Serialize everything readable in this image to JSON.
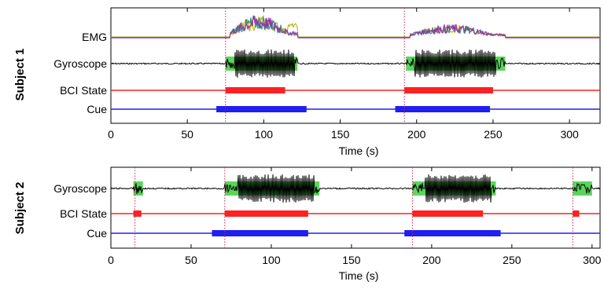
{
  "chart_data": [
    {
      "type": "line",
      "subject_label": "Subject 1",
      "xlabel": "Time (s)",
      "xlim": [
        0,
        320
      ],
      "xticks": [
        0,
        50,
        100,
        150,
        200,
        250,
        300
      ],
      "row_labels": [
        "EMG",
        "Gyroscope",
        "BCI State",
        "Cue"
      ],
      "colors": {
        "emg": [
          "#b5b51a",
          "#2a9090",
          "#9d2fa6"
        ],
        "gyro_trace": "#000000",
        "gyro_highlight": "#5bd65b",
        "bci": "#ff2020",
        "cue": "#1f1ff0",
        "marker": "#d02050"
      },
      "markers": [
        75,
        192
      ],
      "emg_bursts": [
        [
          78,
          122
        ],
        [
          196,
          258
        ]
      ],
      "gyro_highlight": [
        [
          75,
          122
        ],
        [
          193,
          258
        ]
      ],
      "gyro_active": [
        [
          81,
          120
        ],
        [
          199,
          252
        ]
      ],
      "bci_active": [
        [
          75,
          114
        ],
        [
          192,
          250
        ]
      ],
      "cue_active": [
        [
          69,
          128
        ],
        [
          186,
          248
        ]
      ]
    },
    {
      "type": "line",
      "subject_label": "Subject 2",
      "xlabel": "Time (s)",
      "xlim": [
        0,
        305
      ],
      "xticks": [
        0,
        50,
        100,
        150,
        200,
        250,
        300
      ],
      "row_labels": [
        "Gyroscope",
        "BCI State",
        "Cue"
      ],
      "colors": {
        "gyro_trace": "#000000",
        "gyro_highlight": "#5bd65b",
        "bci": "#ff2020",
        "cue": "#1f1ff0",
        "marker": "#d02050"
      },
      "markers": [
        15,
        71,
        188,
        288
      ],
      "gyro_highlight": [
        [
          14,
          20
        ],
        [
          71,
          130
        ],
        [
          188,
          240
        ],
        [
          288,
          300
        ]
      ],
      "gyro_active": [
        [
          79,
          127
        ],
        [
          196,
          237
        ]
      ],
      "bci_active": [
        [
          14,
          19
        ],
        [
          71,
          123
        ],
        [
          188,
          232
        ],
        [
          288,
          292
        ]
      ],
      "cue_active": [
        [
          63,
          123
        ],
        [
          183,
          243
        ]
      ]
    }
  ]
}
